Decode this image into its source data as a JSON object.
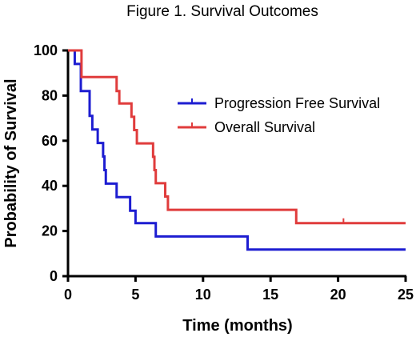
{
  "chart_data": {
    "type": "line",
    "title": "Figure 1. Survival Outcomes",
    "xlabel": "Time (months)",
    "ylabel": "Probability of Survival",
    "xlim": [
      0,
      25
    ],
    "ylim": [
      0,
      100
    ],
    "xticks": [
      "0",
      "5",
      "10",
      "15",
      "20",
      "25"
    ],
    "yticks": [
      "0",
      "20",
      "40",
      "60",
      "80",
      "100"
    ],
    "grid": false,
    "legend_position": "top-right",
    "series": [
      {
        "name": "Progression Free Survival",
        "color": "#1d1dd1",
        "step_points": [
          [
            0,
            100
          ],
          [
            0.5,
            94
          ],
          [
            0.95,
            82
          ],
          [
            1.6,
            71
          ],
          [
            1.8,
            65
          ],
          [
            2.2,
            59
          ],
          [
            2.6,
            53
          ],
          [
            2.7,
            47
          ],
          [
            2.8,
            41
          ],
          [
            3.6,
            35
          ],
          [
            4.6,
            29
          ],
          [
            5.0,
            23.5
          ],
          [
            6.5,
            17.6
          ],
          [
            13.3,
            11.8
          ],
          [
            25,
            11.8
          ]
        ],
        "censor_times": []
      },
      {
        "name": "Overall Survival",
        "color": "#e03c3c",
        "step_points": [
          [
            0,
            100
          ],
          [
            1.0,
            88.2
          ],
          [
            3.6,
            82
          ],
          [
            3.8,
            76.5
          ],
          [
            4.7,
            70.6
          ],
          [
            4.9,
            64.7
          ],
          [
            5.1,
            58.8
          ],
          [
            6.3,
            52.9
          ],
          [
            6.4,
            47
          ],
          [
            6.5,
            41.2
          ],
          [
            7.2,
            35.3
          ],
          [
            7.4,
            29.4
          ],
          [
            16.9,
            23.5
          ],
          [
            25,
            23.5
          ]
        ],
        "censor_times": [
          3.6,
          20.4
        ]
      }
    ]
  }
}
